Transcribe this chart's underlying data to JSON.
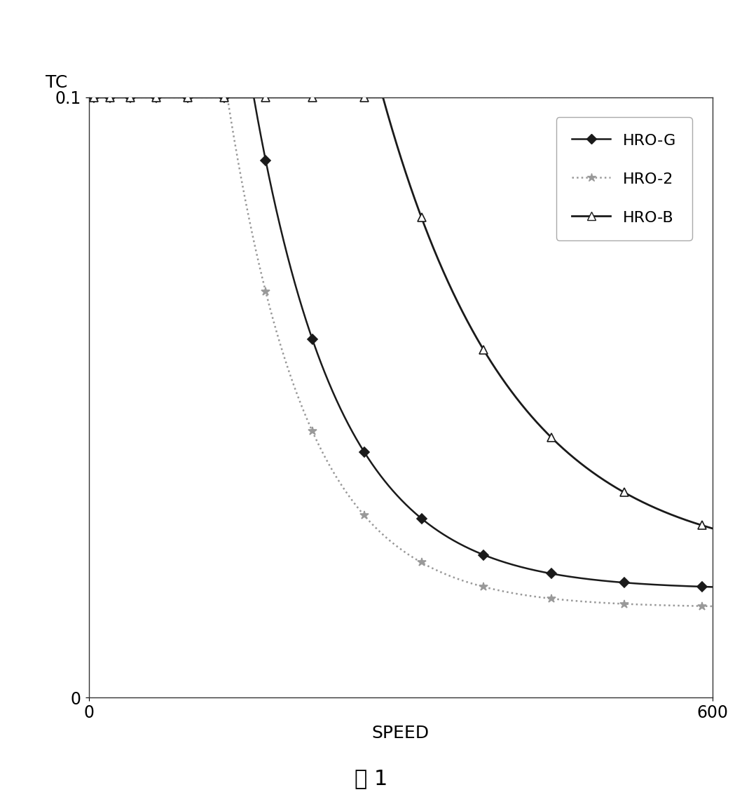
{
  "xlabel": "SPEED",
  "ylabel": "TC",
  "caption": "图 1",
  "xlim": [
    0,
    600
  ],
  "ylim": [
    0,
    0.1
  ],
  "ytick_val": 0.1,
  "ytick_label": "0.1",
  "xtick_vals": [
    0,
    600
  ],
  "xtick_labels": [
    "0",
    "600"
  ],
  "background_color": "#ffffff",
  "series": [
    {
      "label": "HRO-G",
      "color": "#1a1a1a",
      "linestyle": "solid",
      "linewidth": 1.8,
      "marker": "D",
      "markersize": 7,
      "markerfacecolor": "#1a1a1a",
      "markeredgecolor": "#1a1a1a",
      "A": 0.55,
      "k": 0.012,
      "C": 0.018
    },
    {
      "label": "HRO-2",
      "color": "#999999",
      "linestyle": "dotted",
      "linewidth": 1.8,
      "marker": "*",
      "markersize": 9,
      "markerfacecolor": "#999999",
      "markeredgecolor": "#999999",
      "A": 0.48,
      "k": 0.013,
      "C": 0.015
    },
    {
      "label": "HRO-B",
      "color": "#1a1a1a",
      "linestyle": "solid",
      "linewidth": 2.0,
      "marker": "^",
      "markersize": 9,
      "markerfacecolor": "#ffffff",
      "markeredgecolor": "#1a1a1a",
      "A": 0.75,
      "k": 0.008,
      "C": 0.022
    }
  ],
  "marker_x": [
    5,
    20,
    40,
    65,
    95,
    130,
    170,
    215,
    265,
    320,
    380,
    445,
    515,
    590
  ],
  "legend_fontsize": 16,
  "axis_label_fontsize": 18,
  "tick_fontsize": 17,
  "caption_fontsize": 22
}
